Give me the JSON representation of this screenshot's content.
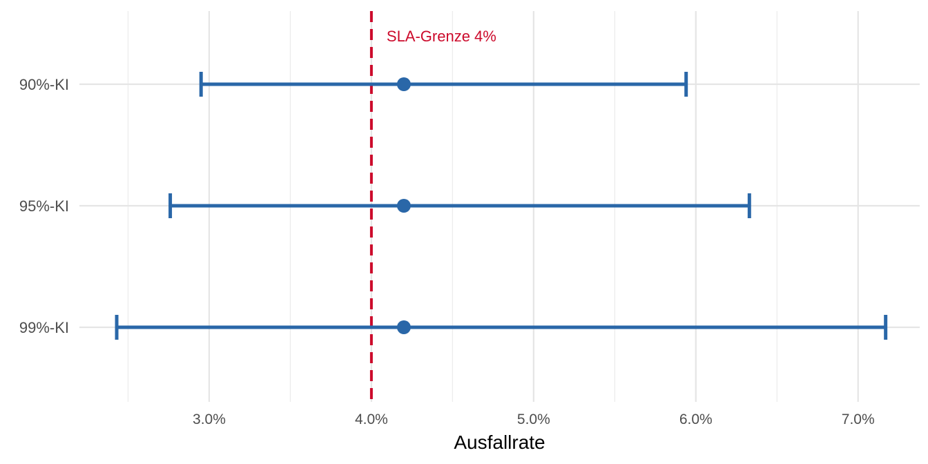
{
  "chart_data": {
    "type": "errorbar",
    "xlabel": "Ausfallrate",
    "ylabel": "",
    "xlim": [
      0.022,
      0.0738
    ],
    "x_ticks": [
      0.03,
      0.04,
      0.05,
      0.06,
      0.07
    ],
    "x_tick_labels": [
      "3.0%",
      "4.0%",
      "5.0%",
      "6.0%",
      "7.0%"
    ],
    "categories": [
      "90%-KI",
      "95%-KI",
      "99%-KI"
    ],
    "estimate": [
      0.042,
      0.042,
      0.042
    ],
    "lower": [
      0.0295,
      0.0276,
      0.0243
    ],
    "upper": [
      0.0594,
      0.0633,
      0.0717
    ],
    "reference_line": {
      "x": 0.04,
      "label": "SLA-Grenze 4%",
      "color": "#CC0A2B",
      "style": "dashed"
    },
    "series_color": "#2A67A8",
    "grid": true,
    "legend": "none"
  }
}
